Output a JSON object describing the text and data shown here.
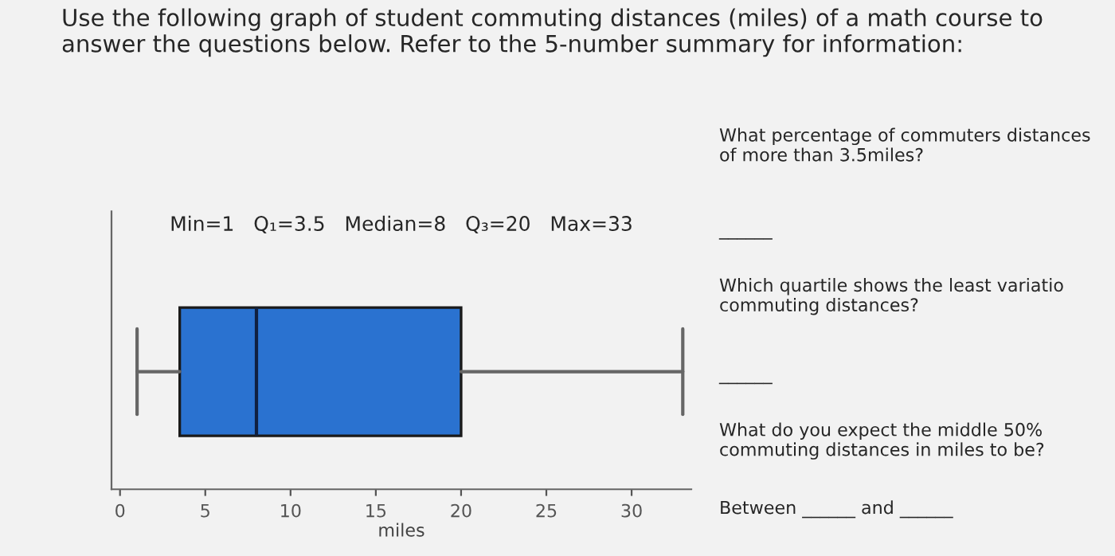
{
  "chart_data": {
    "type": "box",
    "title": "Use the following graph of student commuting distances (miles) of a math course to answer the questions below. Refer to the 5-number summary for information:",
    "subtitle": "Min=1   Q₁=3.5   Median=8   Q₃=20   Max=33",
    "orientation": "horizontal",
    "categories": [
      null
    ],
    "boxes": [
      {
        "low": 1,
        "q1": 3.5,
        "median": 8,
        "q3": 20,
        "high": 33
      }
    ],
    "color": "#2a72d0",
    "xlabel": "miles",
    "xlim": [
      -0.5,
      33.5
    ],
    "xticks": [
      0,
      5,
      10,
      15,
      20,
      25,
      30
    ],
    "tick_labels": "x",
    "grid": false,
    "annotations": [
      "What percentage of commuters distances of more than 3.5miles?",
      "______",
      "Which quartile shows the least variatio commuting distances?",
      "______",
      "What do you expect the middle 50% commuting distances in miles to be?",
      "Between ______ and ______"
    ]
  }
}
